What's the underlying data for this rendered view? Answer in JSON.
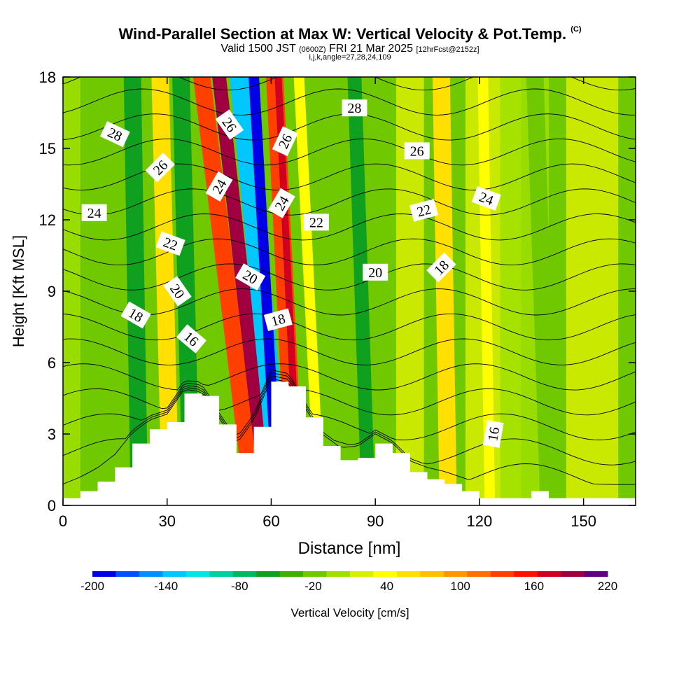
{
  "title": {
    "main": "Wind-Parallel Section at Max W: Vertical Velocity & Pot.Temp.",
    "main_mark": "(C)",
    "sub_valid": "Valid 1500 JST",
    "sub_z": "(0600Z)",
    "sub_date": "FRI 21 Mar 2025",
    "sub_fcst": "[12hrFcst@2152z]",
    "line3": "i,j,k,angle=27,28,24,109"
  },
  "chart_data": {
    "type": "heatmap",
    "xlabel": "Distance [nm]",
    "ylabel": "Height [Kft MSL]",
    "xlim": [
      0,
      165
    ],
    "ylim": [
      0,
      18
    ],
    "x_ticks": [
      0,
      30,
      60,
      90,
      120,
      150
    ],
    "y_ticks": [
      0,
      3,
      6,
      9,
      12,
      15,
      18
    ],
    "colorbar": {
      "label": "Vertical Velocity [cm/s]",
      "min": -200,
      "max": 220,
      "step": 20,
      "tick_labels": [
        "-200",
        "-140",
        "-80",
        "-20",
        "40",
        "100",
        "160",
        "220"
      ],
      "tick_values": [
        -200,
        -140,
        -80,
        -20,
        40,
        100,
        160,
        220
      ],
      "colors": [
        "#0000e6",
        "#0050ff",
        "#0090ff",
        "#00c8ff",
        "#00e6e6",
        "#00d0a0",
        "#00b860",
        "#10a020",
        "#40b000",
        "#70c800",
        "#a0e000",
        "#d8f000",
        "#ffff00",
        "#ffe000",
        "#ffc000",
        "#ff9800",
        "#ff7000",
        "#ff4000",
        "#ff1000",
        "#d00020",
        "#a00040",
        "#600080"
      ]
    },
    "terrain": {
      "x": [
        0,
        5,
        10,
        15,
        20,
        25,
        30,
        35,
        40,
        45,
        50,
        55,
        60,
        65,
        70,
        75,
        80,
        85,
        90,
        95,
        100,
        105,
        110,
        115,
        120,
        125,
        130,
        135,
        140,
        145,
        150,
        155,
        160,
        165
      ],
      "y": [
        0.3,
        0.6,
        1.0,
        1.6,
        2.6,
        3.2,
        3.5,
        4.7,
        4.6,
        3.4,
        2.2,
        3.3,
        5.2,
        5.0,
        3.7,
        2.5,
        1.9,
        2.0,
        2.6,
        2.2,
        1.4,
        1.1,
        0.9,
        0.6,
        0.3,
        0.3,
        0.3,
        0.6,
        0.3,
        0.3,
        0.3,
        0.3,
        0.3,
        0.3
      ]
    },
    "velocity_bands": [
      {
        "x_bottom": 22,
        "x_top": 20,
        "width": 5,
        "value": -60
      },
      {
        "x_bottom": 31,
        "x_top": 28,
        "width": 5,
        "value": 60
      },
      {
        "x_bottom": 37,
        "x_top": 34,
        "width": 5,
        "value": -60
      },
      {
        "x_bottom": 55,
        "x_top": 40,
        "width": 5,
        "value": 140
      },
      {
        "x_bottom": 59,
        "x_top": 45,
        "width": 4,
        "value": 200
      },
      {
        "x_bottom": 63,
        "x_top": 51,
        "width": 6,
        "value": -140
      },
      {
        "x_bottom": 62,
        "x_top": 55,
        "width": 3,
        "value": -200
      },
      {
        "x_bottom": 67,
        "x_top": 61,
        "width": 5,
        "value": 140
      },
      {
        "x_bottom": 68,
        "x_top": 62,
        "width": 2,
        "value": 180
      },
      {
        "x_bottom": 74,
        "x_top": 68,
        "width": 3,
        "value": 40
      },
      {
        "x_bottom": 88,
        "x_top": 84,
        "width": 4,
        "value": -60
      },
      {
        "x_bottom": 111,
        "x_top": 109,
        "width": 5,
        "value": 60
      },
      {
        "x_bottom": 123,
        "x_top": 121,
        "width": 3,
        "value": 40
      },
      {
        "x_bottom": 140,
        "x_top": 136,
        "width": 5,
        "value": -20
      }
    ],
    "theta_contours": [
      {
        "label": "16",
        "label_at": [
          37,
          7.0
        ],
        "label_angle": 40
      },
      {
        "label": "16",
        "label_at": [
          124,
          3.0
        ],
        "label_angle": -80
      },
      {
        "label": "18",
        "label_at": [
          21,
          8.0
        ],
        "label_angle": 30
      },
      {
        "label": "18",
        "label_at": [
          62,
          7.8
        ],
        "label_angle": -15
      },
      {
        "label": "18",
        "label_at": [
          109,
          10.0
        ],
        "label_angle": -45
      },
      {
        "label": "20",
        "label_at": [
          33,
          9.0
        ],
        "label_angle": 55
      },
      {
        "label": "20",
        "label_at": [
          54,
          9.6
        ],
        "label_angle": 30
      },
      {
        "label": "20",
        "label_at": [
          90,
          9.8
        ],
        "label_angle": 0
      },
      {
        "label": "22",
        "label_at": [
          31,
          11.0
        ],
        "label_angle": 20
      },
      {
        "label": "22",
        "label_at": [
          73,
          11.9
        ],
        "label_angle": 0
      },
      {
        "label": "22",
        "label_at": [
          104,
          12.4
        ],
        "label_angle": -15
      },
      {
        "label": "24",
        "label_at": [
          9,
          12.3
        ],
        "label_angle": 0
      },
      {
        "label": "24",
        "label_at": [
          45,
          13.4
        ],
        "label_angle": -60
      },
      {
        "label": "24",
        "label_at": [
          63,
          12.7
        ],
        "label_angle": -60
      },
      {
        "label": "24",
        "label_at": [
          122,
          12.9
        ],
        "label_angle": 20
      },
      {
        "label": "26",
        "label_at": [
          28,
          14.2
        ],
        "label_angle": -45
      },
      {
        "label": "26",
        "label_at": [
          48,
          16.0
        ],
        "label_angle": 55
      },
      {
        "label": "26",
        "label_at": [
          64,
          15.3
        ],
        "label_angle": -65
      },
      {
        "label": "26",
        "label_at": [
          102,
          14.9
        ],
        "label_angle": 0
      },
      {
        "label": "28",
        "label_at": [
          15,
          15.6
        ],
        "label_angle": 25
      },
      {
        "label": "28",
        "label_at": [
          84,
          16.7
        ],
        "label_angle": 0
      }
    ]
  }
}
